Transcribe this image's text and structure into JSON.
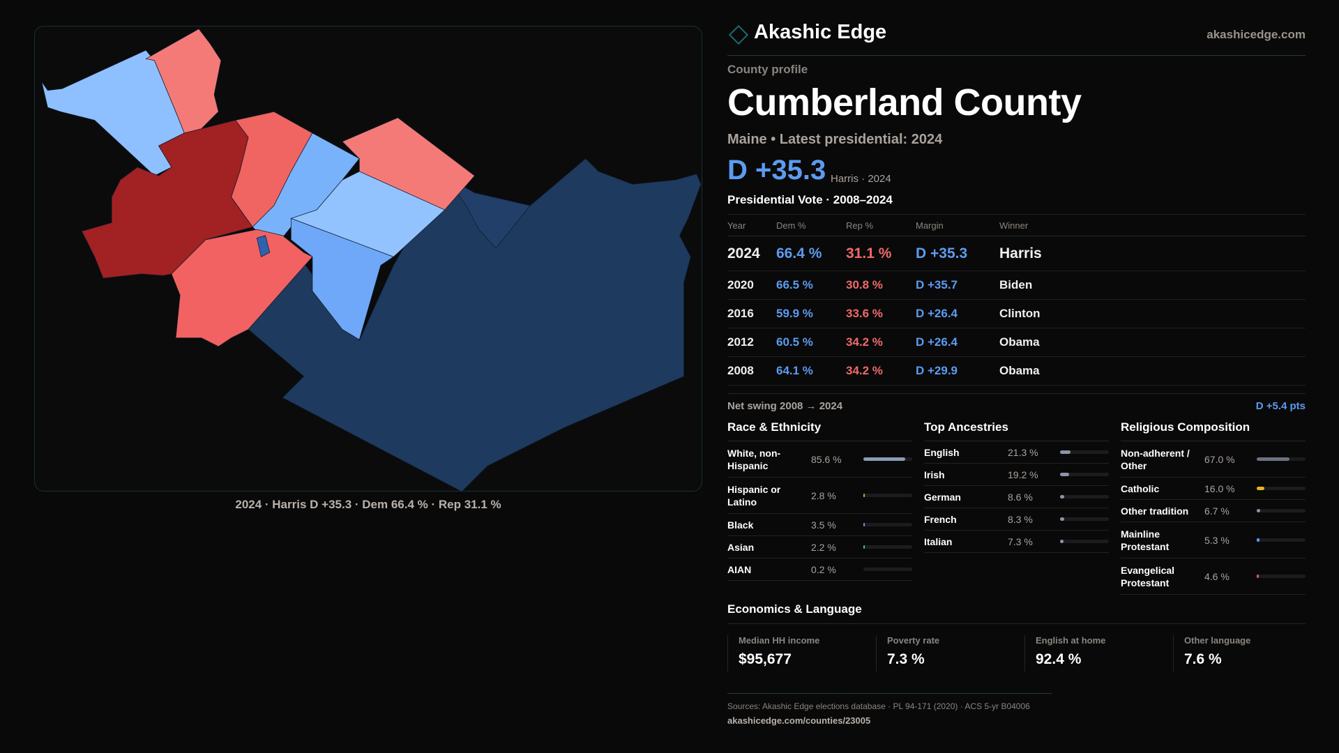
{
  "brand": {
    "name": "Akashic Edge",
    "site": "akashicedge.com",
    "logo_icon": "diamond-icon"
  },
  "profile": {
    "kicker": "County profile",
    "title": "Cumberland County",
    "subtitle": "Maine • Latest presidential: 2024",
    "margin": "D +35.3",
    "margin_sub": "Harris · 2024"
  },
  "colors": {
    "dem": "#5b9cf0",
    "rep": "#f06a6a",
    "background": "#0a0909"
  },
  "map": {
    "caption": "2024 · Harris D +35.3 · Dem 66.4 % · Rep 31.1 %"
  },
  "vote": {
    "title": "Presidential Vote · 2008–2024",
    "headers": [
      "Year",
      "Dem %",
      "Rep %",
      "Margin",
      "Winner"
    ],
    "rows": [
      {
        "year": "2024",
        "dem": "66.4 %",
        "rep": "31.1 %",
        "margin": "D +35.3",
        "winner": "Harris"
      },
      {
        "year": "2020",
        "dem": "66.5 %",
        "rep": "30.8 %",
        "margin": "D +35.7",
        "winner": "Biden"
      },
      {
        "year": "2016",
        "dem": "59.9 %",
        "rep": "33.6 %",
        "margin": "D +26.4",
        "winner": "Clinton"
      },
      {
        "year": "2012",
        "dem": "60.5 %",
        "rep": "34.2 %",
        "margin": "D +26.4",
        "winner": "Obama"
      },
      {
        "year": "2008",
        "dem": "64.1 %",
        "rep": "34.2 %",
        "margin": "D +29.9",
        "winner": "Obama"
      }
    ],
    "swing_label": "Net swing 2008 → 2024",
    "swing_value": "D +5.4 pts"
  },
  "race": {
    "title": "Race & Ethnicity",
    "items": [
      {
        "label": "White, non-Hispanic",
        "pct": "85.6 %",
        "value": 85.6,
        "color": "#8a9bb5"
      },
      {
        "label": "Hispanic or Latino",
        "pct": "2.8 %",
        "value": 2.8,
        "color": "#e0a030"
      },
      {
        "label": "Black",
        "pct": "3.5 %",
        "value": 3.5,
        "color": "#9a7cf0"
      },
      {
        "label": "Asian",
        "pct": "2.2 %",
        "value": 2.2,
        "color": "#3cc0a0"
      },
      {
        "label": "AIAN",
        "pct": "0.2 %",
        "value": 0.2,
        "color": "#555"
      }
    ]
  },
  "ancestry": {
    "title": "Top Ancestries",
    "items": [
      {
        "label": "English",
        "pct": "21.3 %",
        "value": 21.3,
        "color": "#8a96a8"
      },
      {
        "label": "Irish",
        "pct": "19.2 %",
        "value": 19.2,
        "color": "#8a96a8"
      },
      {
        "label": "German",
        "pct": "8.6 %",
        "value": 8.6,
        "color": "#8a96a8"
      },
      {
        "label": "French",
        "pct": "8.3 %",
        "value": 8.3,
        "color": "#8a96a8"
      },
      {
        "label": "Italian",
        "pct": "7.3 %",
        "value": 7.3,
        "color": "#8a96a8"
      }
    ]
  },
  "religion": {
    "title": "Religious Composition",
    "items": [
      {
        "label": "Non-adherent / Other",
        "pct": "67.0 %",
        "value": 67.0,
        "color": "#6b7280"
      },
      {
        "label": "Catholic",
        "pct": "16.0 %",
        "value": 16.0,
        "color": "#e6b422"
      },
      {
        "label": "Other tradition",
        "pct": "6.7 %",
        "value": 6.7,
        "color": "#8a96a8"
      },
      {
        "label": "Mainline Protestant",
        "pct": "5.3 %",
        "value": 5.3,
        "color": "#5b9cf0"
      },
      {
        "label": "Evangelical Protestant",
        "pct": "4.6 %",
        "value": 4.6,
        "color": "#e05a5a"
      }
    ]
  },
  "economics": {
    "title": "Economics & Language",
    "cards": [
      {
        "label": "Median HH income",
        "value": "$95,677"
      },
      {
        "label": "Poverty rate",
        "value": "7.3 %"
      },
      {
        "label": "English at home",
        "value": "92.4 %"
      },
      {
        "label": "Other language",
        "value": "7.6 %"
      }
    ]
  },
  "footer": {
    "sources": "Sources: Akashic Edge elections database · PL 94-171 (2020) · ACS 5-yr B04006",
    "url": "akashicedge.com/counties/23005"
  }
}
